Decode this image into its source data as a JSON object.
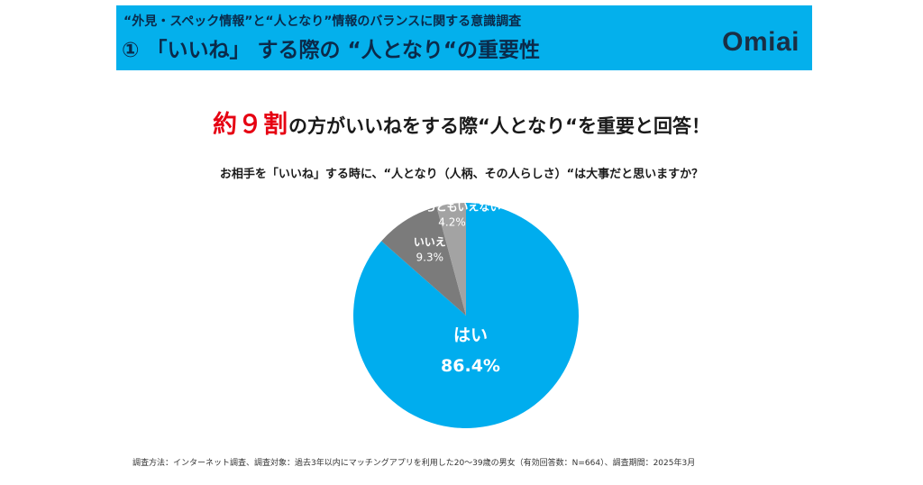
{
  "banner": {
    "subtitle": "“外見・スペック情報”と“人となり”情報のバランスに関する意識調査",
    "title": "① 「いいね」 する際の “人となり“の重要性",
    "logo_text": "Omiai",
    "color": "#04b0ec"
  },
  "headline": {
    "accent": "約９割",
    "rest": "の方がいいねをする際“人となり“を重要と回答！",
    "accent_color": "#e60012"
  },
  "question": "お相手を「いいね」する時に、“人となり（人柄、その人らしさ）“は大事だと思いますか？",
  "chart_data": {
    "type": "pie",
    "title": "お相手を「いいね」する時に、“人となり（人柄、その人らしさ）“は大事だと思いますか？",
    "start": "12 o'clock, clockwise",
    "slices": [
      {
        "label": "はい",
        "value": 86.4,
        "display": "86.4%",
        "color": "#00adee"
      },
      {
        "label": "いいえ",
        "value": 9.3,
        "display": "9.3%",
        "color": "#7b7b7b"
      },
      {
        "label": "どちらともいえない",
        "value": 4.2,
        "display": "4.2%",
        "color": "#a3a3a3"
      }
    ]
  },
  "footnote": "調査方法：インターネット調査、調査対象：過去3年以内にマッチングアプリを利用した20～39歳の男女（有効回答数：N=664）、調査期間：2025年3月"
}
